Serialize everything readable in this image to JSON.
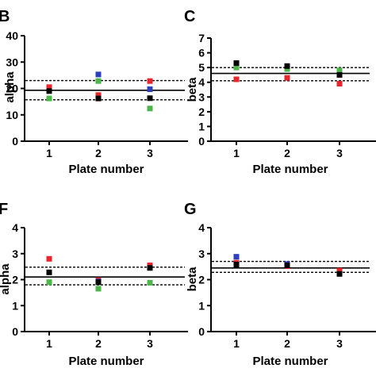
{
  "chart_data": [
    {
      "panel": "B",
      "type": "scatter",
      "categories": [
        "1",
        "2",
        "3"
      ],
      "xlabel": "Plate number",
      "ylabel": "alpha",
      "ylim": [
        0,
        40
      ],
      "yticks": [
        "0",
        "10",
        "20",
        "30",
        "40"
      ],
      "mean_line": 19.3,
      "dashed_lines": [
        23.0,
        15.7
      ],
      "series": [
        {
          "color": "#e8262b",
          "values": [
            20.5,
            17.5,
            22.8
          ]
        },
        {
          "color": "#2b3fbf",
          "values": [
            null,
            25.3,
            19.7
          ]
        },
        {
          "color": "#4cb748",
          "values": [
            16.2,
            22.8,
            12.4
          ]
        },
        {
          "color": "#000000",
          "values": [
            19.0,
            16.2,
            16.3
          ]
        }
      ]
    },
    {
      "panel": "C",
      "type": "scatter",
      "categories": [
        "1",
        "2",
        "3"
      ],
      "xlabel": "Plate number",
      "ylabel": "beta",
      "ylim": [
        0,
        7
      ],
      "yticks": [
        "0",
        "1",
        "2",
        "3",
        "4",
        "5",
        "6",
        "7"
      ],
      "mean_line": 4.6,
      "dashed_lines": [
        5.0,
        4.1
      ],
      "series": [
        {
          "color": "#e8262b",
          "values": [
            4.2,
            4.3,
            3.9
          ]
        },
        {
          "color": "#2b3fbf",
          "values": [
            null,
            null,
            null
          ]
        },
        {
          "color": "#4cb748",
          "values": [
            5.0,
            4.9,
            4.8
          ]
        },
        {
          "color": "#000000",
          "values": [
            5.3,
            5.1,
            4.5
          ]
        }
      ]
    },
    {
      "panel": "F",
      "type": "scatter",
      "categories": [
        "1",
        "2",
        "3"
      ],
      "xlabel": "Plate number",
      "ylabel": "alpha",
      "ylim": [
        0,
        4
      ],
      "yticks": [
        "0",
        "1",
        "2",
        "3",
        "4"
      ],
      "mean_line": 2.1,
      "dashed_lines": [
        2.48,
        1.8
      ],
      "series": [
        {
          "color": "#e8262b",
          "values": [
            2.8,
            1.98,
            2.55
          ]
        },
        {
          "color": "#2b3fbf",
          "values": [
            null,
            1.93,
            null
          ]
        },
        {
          "color": "#4cb748",
          "values": [
            1.9,
            1.65,
            1.88
          ]
        },
        {
          "color": "#000000",
          "values": [
            2.28,
            1.9,
            2.45
          ]
        }
      ]
    },
    {
      "panel": "G",
      "type": "scatter",
      "categories": [
        "1",
        "2",
        "3"
      ],
      "xlabel": "Plate number",
      "ylabel": "beta",
      "ylim": [
        0,
        4
      ],
      "yticks": [
        "0",
        "1",
        "2",
        "3",
        "4"
      ],
      "mean_line": 2.45,
      "dashed_lines": [
        2.7,
        2.28
      ],
      "series": [
        {
          "color": "#e8262b",
          "values": [
            2.65,
            2.52,
            2.35
          ]
        },
        {
          "color": "#2b3fbf",
          "values": [
            2.88,
            2.6,
            null
          ]
        },
        {
          "color": "#4cb748",
          "values": [
            null,
            null,
            null
          ]
        },
        {
          "color": "#000000",
          "values": [
            2.58,
            2.55,
            2.22
          ]
        }
      ]
    }
  ]
}
